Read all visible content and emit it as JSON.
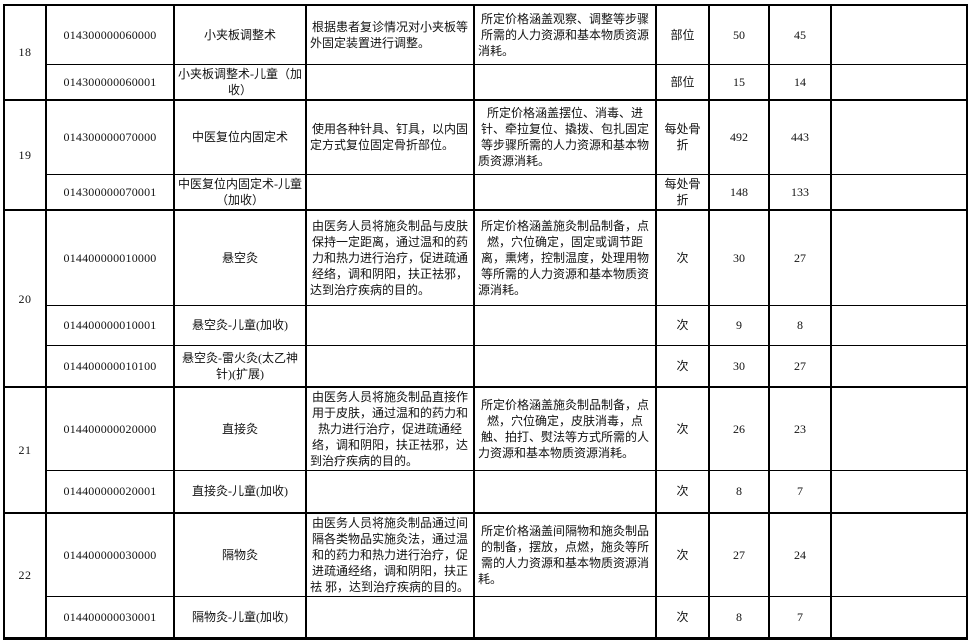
{
  "table": {
    "groups": [
      {
        "row_no": "18",
        "items": [
          {
            "code": "014300000060000",
            "name": "小夹板调整术",
            "description": "根据患者复诊情况对小夹板等外固定装置进行调整。",
            "coverage": "所定价格涵盖观察、调整等步骤所需的人力资源和基本物质资源消耗。",
            "unit": "部位",
            "price1": "50",
            "price2": "45",
            "note": ""
          },
          {
            "code": "014300000060001",
            "name": "小夹板调整术-儿童（加收）",
            "description": "",
            "coverage": "",
            "unit": "部位",
            "price1": "15",
            "price2": "14",
            "note": ""
          }
        ]
      },
      {
        "row_no": "19",
        "items": [
          {
            "code": "014300000070000",
            "name": "中医复位内固定术",
            "description": "使用各种针具、钉具，以内固定方式复位固定骨折部位。",
            "coverage": "所定价格涵盖摆位、消毒、进针、牵拉复位、撬拨、包扎固定等步骤所需的人力资源和基本物质资源消耗。",
            "unit": "每处骨折",
            "price1": "492",
            "price2": "443",
            "note": ""
          },
          {
            "code": "014300000070001",
            "name": "中医复位内固定术-儿童（加收）",
            "description": "",
            "coverage": "",
            "unit": "每处骨折",
            "price1": "148",
            "price2": "133",
            "note": ""
          }
        ]
      },
      {
        "row_no": "20",
        "items": [
          {
            "code": "014400000010000",
            "name": "悬空灸",
            "description": "由医务人员将施灸制品与皮肤保持一定距离，通过温和的药力和热力进行治疗，促进疏通经络，调和阴阳，扶正祛邪，达到治疗疾病的目的。",
            "coverage": "所定价格涵盖施灸制品制备，点燃，穴位确定，固定或调节距离，熏烤，控制温度，处理用物等所需的人力资源和基本物质资源消耗。",
            "unit": "次",
            "price1": "30",
            "price2": "27",
            "note": ""
          },
          {
            "code": "014400000010001",
            "name": "悬空灸-儿童(加收)",
            "description": "",
            "coverage": "",
            "unit": "次",
            "price1": "9",
            "price2": "8",
            "note": ""
          },
          {
            "code": "014400000010100",
            "name": "悬空灸-雷火灸(太乙神针)(扩展)",
            "description": "",
            "coverage": "",
            "unit": "次",
            "price1": "30",
            "price2": "27",
            "note": ""
          }
        ]
      },
      {
        "row_no": "21",
        "items": [
          {
            "code": "014400000020000",
            "name": "直接灸",
            "description": "由医务人员将施灸制品直接作用于皮肤，通过温和的药力和热力进行治疗，促进疏通经络，调和阴阳，扶正祛邪，达到治疗疾病的目的。",
            "coverage": "所定价格涵盖施灸制品制备，点燃，穴位确定，皮肤消毒，点触、拍打、熨法等方式所需的人力资源和基本物质资源消耗。",
            "unit": "次",
            "price1": "26",
            "price2": "23",
            "note": ""
          },
          {
            "code": "014400000020001",
            "name": "直接灸-儿童(加收)",
            "description": "",
            "coverage": "",
            "unit": "次",
            "price1": "8",
            "price2": "7",
            "note": ""
          }
        ]
      },
      {
        "row_no": "22",
        "items": [
          {
            "code": "014400000030000",
            "name": "隔物灸",
            "description": "由医务人员将施灸制品通过间隔各类物品实施灸法，通过温和的药力和热力进行治疗，促进疏通经络，调和阴阳，扶正祛 邪，达到治疗疾病的目的。",
            "coverage": "所定价格涵盖间隔物和施灸制品的制备，摆放，点燃，施灸等所需的人力资源和基本物质资源消耗。",
            "unit": "次",
            "price1": "27",
            "price2": "24",
            "note": ""
          },
          {
            "code": "014400000030001",
            "name": "隔物灸-儿童(加收)",
            "description": "",
            "coverage": "",
            "unit": "次",
            "price1": "8",
            "price2": "7",
            "note": ""
          }
        ]
      }
    ]
  }
}
